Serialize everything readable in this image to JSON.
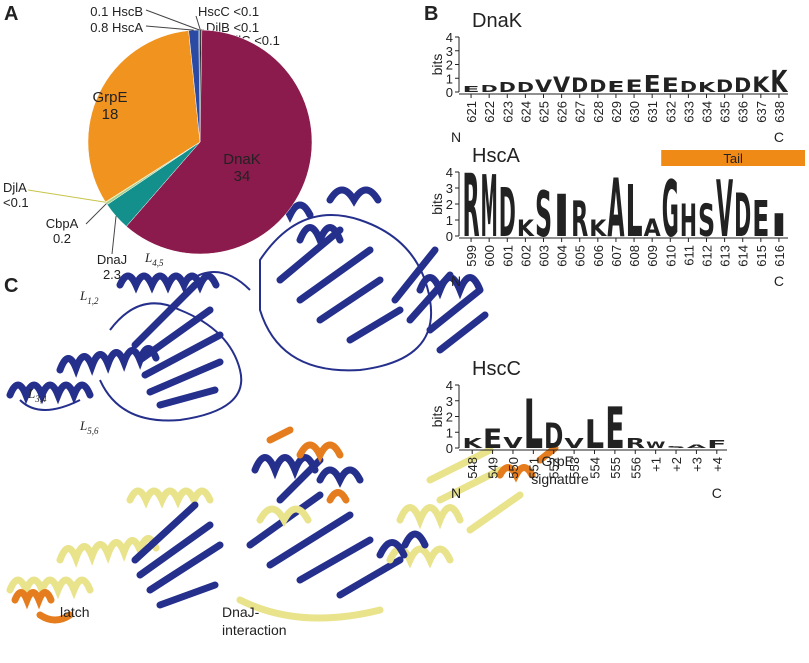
{
  "panel_labels": [
    "A",
    "B",
    "C"
  ],
  "chart_data": [
    {
      "type": "pie",
      "categories": [
        "HscC",
        "DjlB",
        "DjlC",
        "DnaK",
        "DnaJ",
        "CbpA",
        "DjlA",
        "GrpE",
        "HscA",
        "HscB"
      ],
      "values": [
        0.05,
        0.05,
        0.05,
        34,
        2.3,
        0.2,
        0.05,
        18,
        0.8,
        0.1
      ],
      "value_labels": [
        "<0.1",
        "<0.1",
        "<0.1",
        "34",
        "2.3",
        "0.2",
        "<0.1",
        "18",
        "0.8",
        "0.1"
      ],
      "colors": [
        "#333333",
        "#222222",
        "#444444",
        "#8b1a4d",
        "#13908c",
        "#a8d08d",
        "#e8e46a",
        "#f0931f",
        "#2b4aa3",
        "#7fb3d9"
      ]
    },
    {
      "type": "logo",
      "title": "DnaK",
      "y_label": "bits",
      "ylim": [
        0,
        4
      ],
      "yticks": [
        0,
        1,
        2,
        3,
        4
      ],
      "positions": [
        "621",
        "622",
        "623",
        "624",
        "625",
        "626",
        "627",
        "628",
        "629",
        "630",
        "631",
        "632",
        "633",
        "634",
        "635",
        "636",
        "637",
        "638"
      ],
      "letters": [
        "E",
        "D",
        "D",
        "D",
        "V",
        "V",
        "D",
        "D",
        "E",
        "E",
        "E",
        "E",
        "D",
        "K",
        "D",
        "D",
        "K",
        "K"
      ],
      "values": [
        0.4,
        0.5,
        0.7,
        0.7,
        0.9,
        1.1,
        1.0,
        0.9,
        0.8,
        0.9,
        1.2,
        1.0,
        0.8,
        0.7,
        0.9,
        1.0,
        1.1,
        1.6
      ],
      "colors": [
        "#d11b1b",
        "#d11b1b",
        "#d11b1b",
        "#d11b1b",
        "#111111",
        "#111111",
        "#d11b1b",
        "#d11b1b",
        "#d11b1b",
        "#d11b1b",
        "#d11b1b",
        "#d11b1b",
        "#d11b1b",
        "#1c3aa8",
        "#d11b1b",
        "#d11b1b",
        "#1c3aa8",
        "#1c3aa8"
      ],
      "start_label": "N",
      "end_label": "C"
    },
    {
      "type": "logo",
      "title": "HscA",
      "y_label": "bits",
      "ylim": [
        0,
        4
      ],
      "yticks": [
        0,
        1,
        2,
        3,
        4
      ],
      "positions": [
        "599",
        "600",
        "601",
        "602",
        "603",
        "604",
        "605",
        "606",
        "607",
        "608",
        "609",
        "610",
        "611",
        "612",
        "613",
        "614",
        "615",
        "616"
      ],
      "letters": [
        "R",
        "M",
        "D",
        "K",
        "S",
        "I",
        "R",
        "K",
        "A",
        "L",
        "A",
        "G",
        "H",
        "S",
        "V",
        "D",
        "E",
        "I"
      ],
      "values": [
        3.9,
        3.8,
        3.0,
        1.0,
        2.8,
        2.6,
        2.2,
        1.0,
        3.6,
        3.2,
        1.1,
        3.5,
        2.0,
        2.0,
        3.5,
        2.7,
        2.2,
        1.4
      ],
      "colors": [
        "#1c3aa8",
        "#111111",
        "#d11b1b",
        "#1c3aa8",
        "#1ea01e",
        "#111111",
        "#1c3aa8",
        "#1c3aa8",
        "#111111",
        "#111111",
        "#111111",
        "#1ea01e",
        "#1c3aa8",
        "#1ea01e",
        "#111111",
        "#d11b1b",
        "#d11b1b",
        "#111111"
      ],
      "start_label": "N",
      "end_label": "C",
      "annotation": {
        "text": "Tail",
        "from": "610",
        "to": "616",
        "color": "#ef8a16"
      }
    },
    {
      "type": "logo",
      "title": "HscC",
      "y_label": "bits",
      "ylim": [
        0,
        4
      ],
      "yticks": [
        0,
        1,
        2,
        3,
        4
      ],
      "positions": [
        "548",
        "549",
        "550",
        "551",
        "552",
        "553",
        "554",
        "555",
        "556",
        "+1",
        "+2",
        "+3",
        "+4"
      ],
      "letters": [
        "K",
        "E",
        "V",
        "L",
        "D",
        "V",
        "L",
        "E",
        "R",
        "W",
        "S",
        "A",
        "F"
      ],
      "values": [
        0.6,
        1.2,
        0.7,
        3.1,
        1.6,
        0.6,
        1.8,
        2.6,
        0.6,
        0.4,
        0.1,
        0.2,
        0.5
      ],
      "colors": [
        "#1c3aa8",
        "#d11b1b",
        "#111111",
        "#111111",
        "#d11b1b",
        "#111111",
        "#111111",
        "#d11b1b",
        "#1c3aa8",
        "#111111",
        "#1ea01e",
        "#111111",
        "#111111"
      ],
      "start_label": "N",
      "end_label": "C"
    }
  ],
  "structure": {
    "loops": [
      {
        "name": "L",
        "index": "4,5"
      },
      {
        "name": "L",
        "index": "1,2"
      },
      {
        "name": "L",
        "index": "3,4"
      },
      {
        "name": "L",
        "index": "5,6"
      }
    ],
    "labels": [
      [
        "latch"
      ],
      [
        "DnaJ-",
        "interaction"
      ],
      [
        "GrpE-",
        "signature"
      ]
    ]
  }
}
